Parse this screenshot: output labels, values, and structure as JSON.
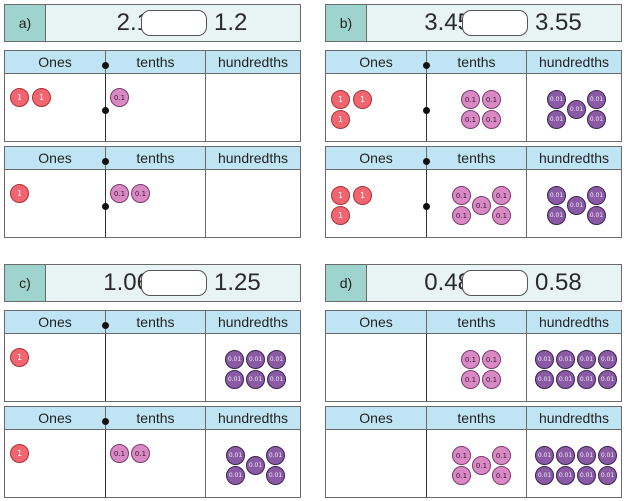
{
  "coin_labels": {
    "one": "1",
    "tenth": "0.1",
    "hundredth": "0.01"
  },
  "colors": {
    "ones_counter": "#f06570",
    "tenths_counter": "#d98ac4",
    "hundredths_counter": "#8a5aa5",
    "header_bg": "#bfe5f5",
    "label_bg": "#9fd3cd",
    "compare_bg": "#e7f4f3"
  },
  "problems": [
    {
      "label": "a)",
      "left": "2.1",
      "right": "1.2",
      "tables": [
        {
          "headers": [
            "Ones",
            "tenths",
            "hundredths"
          ],
          "ones": 2,
          "tenths": 1,
          "hundredths": 0
        },
        {
          "headers": [
            "Ones",
            "tenths",
            "hundredths"
          ],
          "ones": 1,
          "tenths": 2,
          "hundredths": 0
        }
      ]
    },
    {
      "label": "b)",
      "left": "3.45",
      "right": "3.55",
      "tables": [
        {
          "headers": [
            "Ones",
            "tenths",
            "hundredths"
          ],
          "ones": 3,
          "tenths": 4,
          "hundredths": 5
        },
        {
          "headers": [
            "Ones",
            "tenths",
            "hundredths"
          ],
          "ones": 3,
          "tenths": 5,
          "hundredths": 5
        }
      ]
    },
    {
      "label": "c)",
      "left": "1.06",
      "right": "1.25",
      "tables": [
        {
          "headers": [
            "Ones",
            "tenths",
            "hundredths"
          ],
          "ones": 1,
          "tenths": 0,
          "hundredths": 6
        },
        {
          "headers": [
            "Ones",
            "tenths",
            "hundredths"
          ],
          "ones": 1,
          "tenths": 2,
          "hundredths": 5
        }
      ]
    },
    {
      "label": "d)",
      "left": "0.48",
      "right": "0.58",
      "tables": [
        {
          "headers": [
            "Ones",
            "tenths",
            "hundredths"
          ],
          "ones": 0,
          "tenths": 4,
          "hundredths": 8
        },
        {
          "headers": [
            "Ones",
            "tenths",
            "hundredths"
          ],
          "ones": 0,
          "tenths": 5,
          "hundredths": 8
        }
      ]
    }
  ]
}
